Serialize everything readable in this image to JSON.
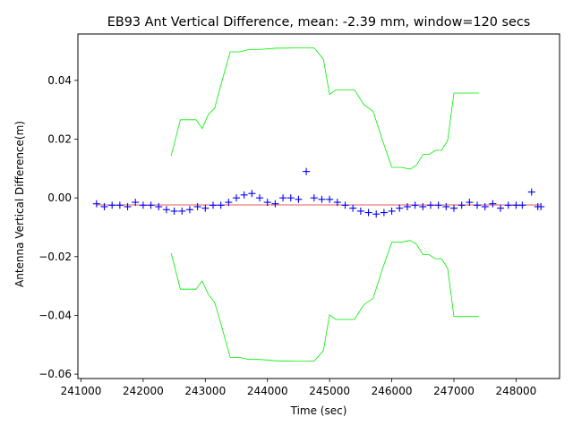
{
  "chart_data": {
    "type": "scatter",
    "title": "EB93 Ant Vertical Difference, mean: -2.39 mm, window=120 secs",
    "xlabel": "Time (sec)",
    "ylabel": "Antenna Vertical Difference(m)",
    "xlim": [
      240950,
      248700
    ],
    "ylim": [
      -0.0615,
      0.0558
    ],
    "xticks": [
      241000,
      242000,
      243000,
      244000,
      245000,
      246000,
      247000,
      248000
    ],
    "xtick_labels": [
      "241000",
      "242000",
      "243000",
      "244000",
      "245000",
      "246000",
      "247000",
      "248000"
    ],
    "yticks": [
      -0.06,
      -0.04,
      -0.02,
      0.0,
      0.02,
      0.04
    ],
    "ytick_labels": [
      "−0.06",
      "−0.04",
      "−0.02",
      "0.00",
      "0.02",
      "0.04"
    ],
    "grid": false,
    "mean_line": {
      "y": -0.00239,
      "x": [
        241250,
        248400
      ],
      "color": "#d62728"
    },
    "series": [
      {
        "marker": "+",
        "color": "#0000ff",
        "x": [
          241250,
          241375,
          241500,
          241625,
          241750,
          241875,
          242000,
          242125,
          242250,
          242375,
          242500,
          242625,
          242750,
          242875,
          243000,
          243125,
          243250,
          243375,
          243500,
          243625,
          243750,
          243875,
          244000,
          244125,
          244250,
          244375,
          244500,
          244625,
          244750,
          244875,
          245000,
          245125,
          245250,
          245375,
          245500,
          245625,
          245750,
          245875,
          246000,
          246125,
          246250,
          246375,
          246500,
          246625,
          246750,
          246875,
          247000,
          247125,
          247250,
          247375,
          247500,
          247625,
          247750,
          247875,
          248000,
          248100,
          248250,
          248350,
          248400
        ],
        "y": [
          -0.002,
          -0.003,
          -0.0025,
          -0.0025,
          -0.003,
          -0.0015,
          -0.0025,
          -0.0025,
          -0.003,
          -0.004,
          -0.0045,
          -0.0045,
          -0.004,
          -0.003,
          -0.0035,
          -0.0025,
          -0.0025,
          -0.0015,
          0.0,
          0.001,
          0.0015,
          0.0,
          -0.0015,
          -0.002,
          0.0,
          0.0,
          -0.0005,
          0.009,
          0.0,
          -0.0005,
          -0.0005,
          -0.0015,
          -0.0025,
          -0.0035,
          -0.0045,
          -0.005,
          -0.0055,
          -0.005,
          -0.0045,
          -0.0035,
          -0.003,
          -0.0025,
          -0.003,
          -0.0025,
          -0.0025,
          -0.003,
          -0.0035,
          -0.0025,
          -0.0015,
          -0.0025,
          -0.003,
          -0.002,
          -0.0035,
          -0.0025,
          -0.0025,
          -0.0025,
          0.002,
          -0.003,
          -0.003
        ]
      },
      {
        "color": "#00ee00",
        "x": [
          242450,
          242600,
          242750,
          242850,
          242950,
          243050,
          243150,
          243250,
          243400,
          243550,
          243700,
          243850,
          244000,
          244150,
          244300,
          244450,
          244600,
          244750,
          244900,
          245000,
          245100,
          245250,
          245400,
          245550,
          245700,
          245850,
          246000,
          246150,
          246300,
          246400,
          246500,
          246600,
          246700,
          246800,
          246900,
          247000,
          247150,
          247400
        ],
        "y": [
          0.0143,
          0.0266,
          0.0266,
          0.0266,
          0.0236,
          0.0284,
          0.0305,
          0.0384,
          0.0497,
          0.0497,
          0.0505,
          0.0505,
          0.0507,
          0.051,
          0.051,
          0.0511,
          0.0511,
          0.0511,
          0.0472,
          0.0352,
          0.0368,
          0.0368,
          0.0368,
          0.0318,
          0.0295,
          0.0196,
          0.0104,
          0.0104,
          0.0098,
          0.0112,
          0.0148,
          0.0148,
          0.0162,
          0.0162,
          0.0195,
          0.0357,
          0.0357,
          0.0357
        ]
      },
      {
        "color": "#00ee00",
        "x": [
          242450,
          242600,
          242750,
          242850,
          242950,
          243050,
          243150,
          243250,
          243400,
          243550,
          243700,
          243850,
          244000,
          244150,
          244300,
          244450,
          244600,
          244750,
          244900,
          245000,
          245100,
          245250,
          245400,
          245550,
          245700,
          245850,
          246000,
          246150,
          246300,
          246400,
          246500,
          246600,
          246700,
          246800,
          246900,
          247000,
          247150,
          247400
        ],
        "y": [
          -0.0188,
          -0.0311,
          -0.0311,
          -0.0311,
          -0.0283,
          -0.0329,
          -0.0356,
          -0.0428,
          -0.0543,
          -0.0543,
          -0.055,
          -0.055,
          -0.0552,
          -0.0555,
          -0.0555,
          -0.0556,
          -0.0556,
          -0.0556,
          -0.052,
          -0.0398,
          -0.0414,
          -0.0414,
          -0.0414,
          -0.0364,
          -0.0342,
          -0.0242,
          -0.0151,
          -0.0151,
          -0.0145,
          -0.0158,
          -0.0193,
          -0.0193,
          -0.0207,
          -0.0207,
          -0.024,
          -0.0404,
          -0.0404,
          -0.0404
        ]
      }
    ]
  }
}
